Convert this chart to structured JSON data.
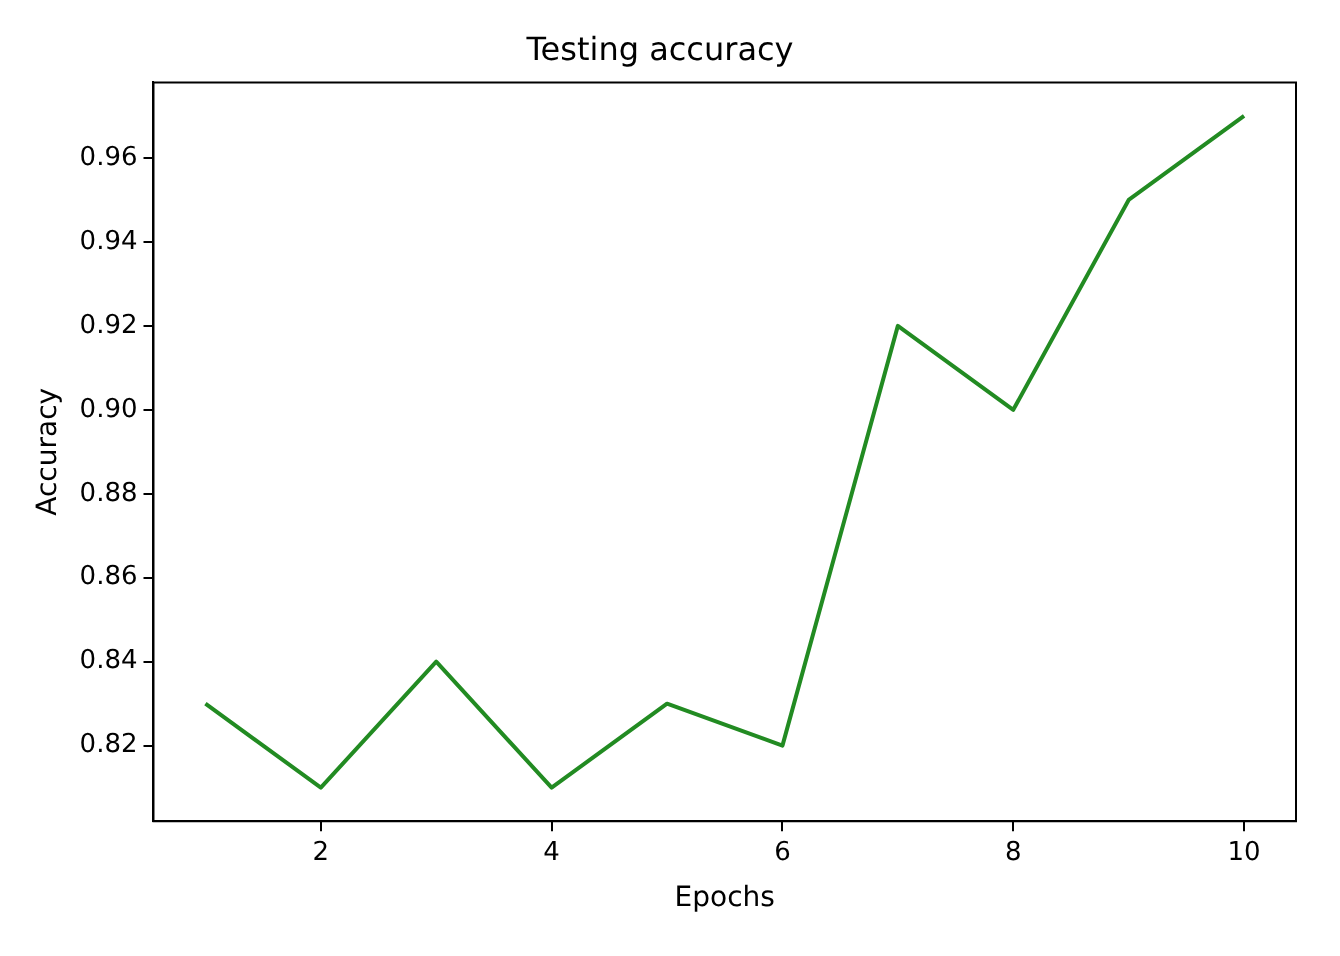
{
  "chart_data": {
    "type": "line",
    "title": "Testing accuracy",
    "xlabel": "Epochs",
    "ylabel": "Accuracy",
    "x": [
      1,
      2,
      3,
      4,
      5,
      6,
      7,
      8,
      9,
      10
    ],
    "series": [
      {
        "color": "#228b22",
        "values": [
          0.83,
          0.81,
          0.84,
          0.81,
          0.83,
          0.82,
          0.92,
          0.9,
          0.95,
          0.97
        ]
      }
    ],
    "xlim": [
      0.55,
      10.45
    ],
    "xticks": [
      2,
      4,
      6,
      8,
      10
    ],
    "ylim": [
      0.802,
      0.978
    ],
    "yticks": [
      {
        "value": 0.82,
        "label": "0.82"
      },
      {
        "value": 0.84,
        "label": "0.84"
      },
      {
        "value": 0.86,
        "label": "0.86"
      },
      {
        "value": 0.88,
        "label": "0.88"
      },
      {
        "value": 0.9,
        "label": "0.90"
      },
      {
        "value": 0.92,
        "label": "0.92"
      },
      {
        "value": 0.94,
        "label": "0.94"
      },
      {
        "value": 0.96,
        "label": "0.96"
      }
    ],
    "grid": false,
    "legend": false,
    "marker": "none",
    "line_style": "solid"
  }
}
